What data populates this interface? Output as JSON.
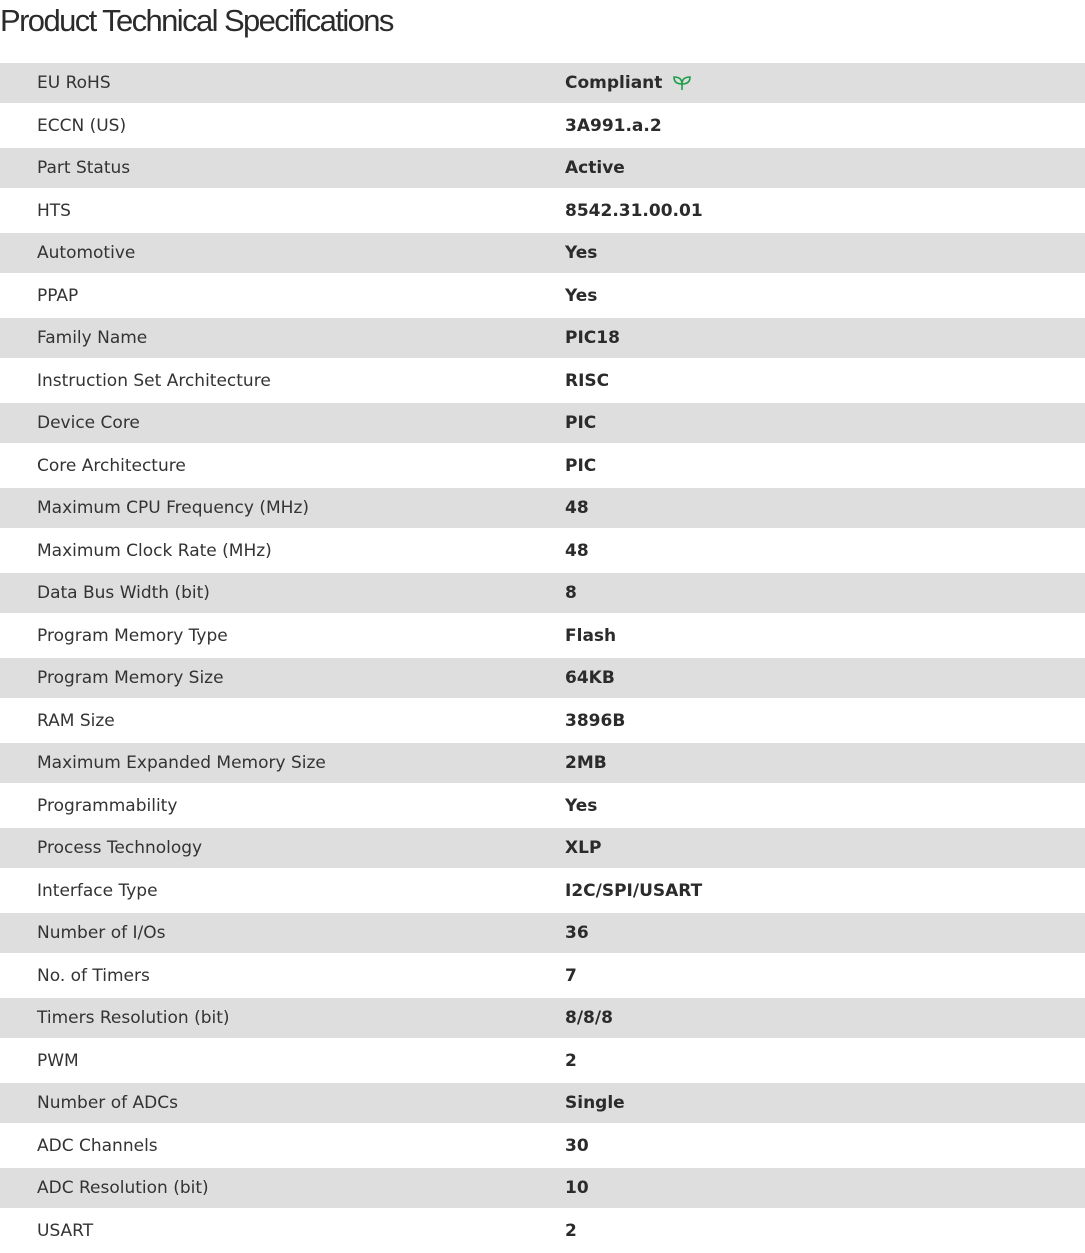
{
  "title": "Product Technical Specifications",
  "accent_color": "#1e9e4a",
  "specs": [
    {
      "label": "EU RoHS",
      "value": "Compliant",
      "icon": "leaf-icon"
    },
    {
      "label": "ECCN (US)",
      "value": "3A991.a.2"
    },
    {
      "label": "Part Status",
      "value": "Active"
    },
    {
      "label": "HTS",
      "value": "8542.31.00.01"
    },
    {
      "label": "Automotive",
      "value": "Yes"
    },
    {
      "label": "PPAP",
      "value": "Yes"
    },
    {
      "label": "Family Name",
      "value": "PIC18"
    },
    {
      "label": "Instruction Set Architecture",
      "value": "RISC"
    },
    {
      "label": "Device Core",
      "value": "PIC"
    },
    {
      "label": "Core Architecture",
      "value": "PIC"
    },
    {
      "label": "Maximum CPU Frequency (MHz)",
      "value": "48"
    },
    {
      "label": "Maximum Clock Rate (MHz)",
      "value": "48"
    },
    {
      "label": "Data Bus Width (bit)",
      "value": "8"
    },
    {
      "label": "Program Memory Type",
      "value": "Flash"
    },
    {
      "label": "Program Memory Size",
      "value": "64KB"
    },
    {
      "label": "RAM Size",
      "value": "3896B"
    },
    {
      "label": "Maximum Expanded Memory Size",
      "value": "2MB"
    },
    {
      "label": "Programmability",
      "value": "Yes"
    },
    {
      "label": "Process Technology",
      "value": "XLP"
    },
    {
      "label": "Interface Type",
      "value": "I2C/SPI/USART"
    },
    {
      "label": "Number of I/Os",
      "value": "36"
    },
    {
      "label": "No. of Timers",
      "value": "7"
    },
    {
      "label": "Timers Resolution (bit)",
      "value": "8/8/8"
    },
    {
      "label": "PWM",
      "value": "2"
    },
    {
      "label": "Number of ADCs",
      "value": "Single"
    },
    {
      "label": "ADC Channels",
      "value": "30"
    },
    {
      "label": "ADC Resolution (bit)",
      "value": "10"
    },
    {
      "label": "USART",
      "value": "2"
    }
  ]
}
